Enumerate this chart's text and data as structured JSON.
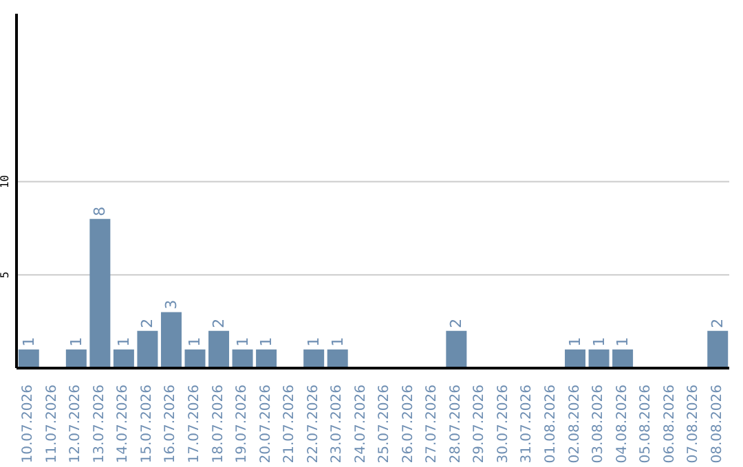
{
  "chart_data": {
    "type": "bar",
    "categories": [
      "10.07.2026",
      "11.07.2026",
      "12.07.2026",
      "13.07.2026",
      "14.07.2026",
      "15.07.2026",
      "16.07.2026",
      "17.07.2026",
      "18.07.2026",
      "19.07.2026",
      "20.07.2026",
      "21.07.2026",
      "22.07.2026",
      "23.07.2026",
      "24.07.2026",
      "25.07.2026",
      "26.07.2026",
      "27.07.2026",
      "28.07.2026",
      "29.07.2026",
      "30.07.2026",
      "31.07.2026",
      "01.08.2026",
      "02.08.2026",
      "03.08.2026",
      "04.08.2026",
      "05.08.2026",
      "06.08.2026",
      "07.08.2026",
      "08.08.2026"
    ],
    "values": [
      1,
      0,
      1,
      8,
      1,
      2,
      3,
      1,
      2,
      1,
      1,
      0,
      1,
      1,
      0,
      0,
      0,
      0,
      2,
      0,
      0,
      0,
      0,
      1,
      1,
      1,
      0,
      0,
      0,
      2
    ],
    "value_labels": [
      "1",
      null,
      "1",
      "8",
      "1",
      "2",
      "3",
      "1",
      "2",
      "1",
      "1",
      null,
      "1",
      "1",
      null,
      null,
      null,
      null,
      "2",
      null,
      null,
      null,
      null,
      "1",
      "1",
      "1",
      null,
      null,
      null,
      "2"
    ],
    "color": "#6a8cac",
    "ylim": [
      0,
      19
    ],
    "yticks": [
      5,
      10
    ],
    "grid": "y"
  }
}
